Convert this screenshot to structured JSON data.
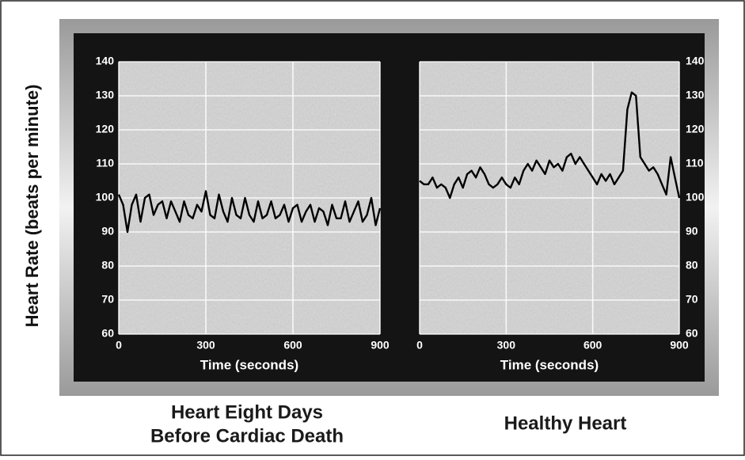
{
  "chart_data": [
    {
      "type": "line",
      "ylabel": "Heart Rate (beats per minute)",
      "xlabel": "Time (seconds)",
      "caption": [
        "Heart Eight Days",
        "Before Cardiac Death"
      ],
      "xlim": [
        0,
        900
      ],
      "xticks": [
        0,
        300,
        600,
        900
      ],
      "ylim": [
        60,
        140
      ],
      "yticks": [
        60,
        70,
        80,
        90,
        100,
        110,
        120,
        130,
        140
      ],
      "yaxis_side": "left",
      "grid": true,
      "x": [
        0,
        15,
        30,
        45,
        60,
        75,
        90,
        105,
        120,
        135,
        150,
        165,
        180,
        195,
        210,
        225,
        240,
        255,
        270,
        285,
        300,
        315,
        330,
        345,
        360,
        375,
        390,
        405,
        420,
        435,
        450,
        465,
        480,
        495,
        510,
        525,
        540,
        555,
        570,
        585,
        600,
        615,
        630,
        645,
        660,
        675,
        690,
        705,
        720,
        735,
        750,
        765,
        780,
        795,
        810,
        825,
        840,
        855,
        870,
        885,
        900
      ],
      "series": [
        {
          "color": "#000000",
          "values": [
            101,
            98,
            90,
            98,
            101,
            93,
            100,
            101,
            95,
            98,
            99,
            94,
            99,
            96,
            93,
            99,
            95,
            94,
            98,
            96,
            102,
            95,
            94,
            101,
            96,
            93,
            100,
            95,
            94,
            100,
            95,
            93,
            99,
            94,
            95,
            99,
            94,
            95,
            98,
            93,
            97,
            98,
            93,
            96,
            98,
            93,
            97,
            96,
            92,
            98,
            94,
            94,
            99,
            93,
            96,
            99,
            93,
            95,
            100,
            92,
            97
          ]
        }
      ]
    },
    {
      "type": "line",
      "xlabel": "Time (seconds)",
      "caption": [
        "Healthy Heart"
      ],
      "xlim": [
        0,
        900
      ],
      "xticks": [
        0,
        300,
        600,
        900
      ],
      "ylim": [
        60,
        140
      ],
      "yticks": [
        60,
        70,
        80,
        90,
        100,
        110,
        120,
        130,
        140
      ],
      "yaxis_side": "right",
      "grid": true,
      "x": [
        0,
        15,
        30,
        45,
        60,
        75,
        90,
        105,
        120,
        135,
        150,
        165,
        180,
        195,
        210,
        225,
        240,
        255,
        270,
        285,
        300,
        315,
        330,
        345,
        360,
        375,
        390,
        405,
        420,
        435,
        450,
        465,
        480,
        495,
        510,
        525,
        540,
        555,
        570,
        585,
        600,
        615,
        630,
        645,
        660,
        675,
        690,
        705,
        720,
        735,
        750,
        765,
        780,
        795,
        810,
        825,
        840,
        855,
        870,
        885,
        900
      ],
      "series": [
        {
          "color": "#000000",
          "values": [
            105,
            104,
            104,
            106,
            103,
            104,
            103,
            100,
            104,
            106,
            103,
            107,
            108,
            106,
            109,
            107,
            104,
            103,
            104,
            106,
            104,
            103,
            106,
            104,
            108,
            110,
            108,
            111,
            109,
            107,
            111,
            109,
            110,
            108,
            112,
            113,
            110,
            112,
            110,
            108,
            106,
            104,
            107,
            105,
            107,
            104,
            106,
            108,
            126,
            131,
            130,
            112,
            110,
            108,
            109,
            107,
            104,
            101,
            112,
            106,
            100
          ]
        }
      ]
    }
  ]
}
